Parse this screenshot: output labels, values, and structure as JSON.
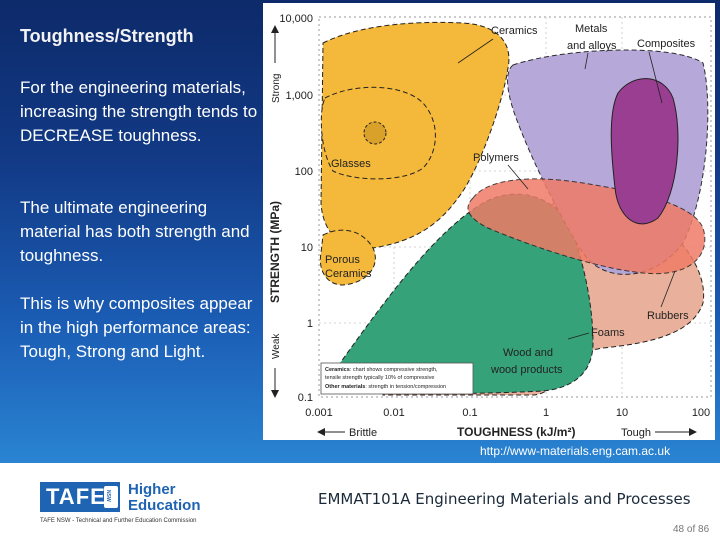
{
  "slide": {
    "heading": "Toughness/Strength",
    "para1": "For the engineering materials, increasing the strength tends to DECREASE toughness.",
    "para2": "The ultimate engineering material has both strength and toughness.",
    "para3": "This is why composites appear in the high performance areas: Tough, Strong and Light.",
    "source_url": "http://www-materials.eng.cam.ac.uk",
    "course_title": "EMMAT101A Engineering Materials and Processes",
    "page_number": "48 of 86",
    "logo_text": "TAFE",
    "logo_badge": "NSW",
    "logo_division_line1": "Higher",
    "logo_division_line2": "Education",
    "logo_org": "TAFE NSW - Technical and Further Education Commission"
  },
  "diagram": {
    "y_axis": {
      "ticks": [
        "10,000",
        "1,000",
        "100",
        "10",
        "1",
        "0.1"
      ],
      "label": "STRENGTH (MPa)",
      "strong_label": "Strong",
      "weak_label": "Weak"
    },
    "x_axis": {
      "ticks": [
        "0.001",
        "0.01",
        "0.1",
        "1",
        "10",
        "100"
      ],
      "label": "TOUGHNESS (kJ/m²)",
      "brittle_label": "Brittle",
      "tough_label": "Tough"
    },
    "regions": {
      "ceramics": "Ceramics",
      "metals_line1": "Metals",
      "metals_line2": "and alloys",
      "composites": "Composites",
      "glasses": "Glasses",
      "polymers": "Polymers",
      "porous_line1": "Porous",
      "porous_line2": "Ceramics",
      "rubbers": "Rubbers",
      "foams": "Foams",
      "wood_line1": "Wood and",
      "wood_line2": "wood products"
    },
    "note": {
      "ceramics_key": "Ceramics",
      "ceramics_text": ": chart shows compressive strength,",
      "ceramics_text2": "tensile strength typically 10% of compressive",
      "other_key": "Other materials",
      "other_text": ": strength in tension/compression"
    },
    "colors": {
      "ceramics": "#f4b63a",
      "metals": "#b4a6d6",
      "composites": "#9b3f92",
      "polymers": "#ef7a66",
      "wood": "#e7a58c",
      "foams": "#2a9e72"
    }
  }
}
